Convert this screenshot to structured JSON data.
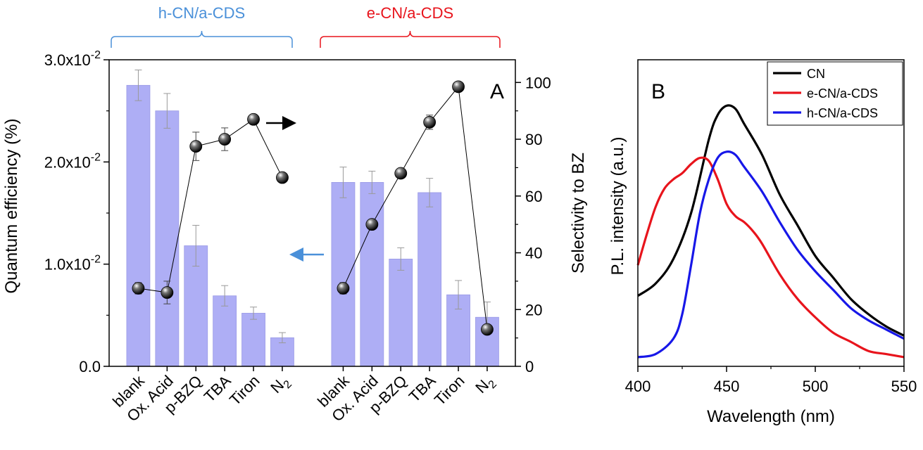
{
  "chart_data": [
    {
      "panel": "A",
      "type": "bar",
      "panel_label": "A",
      "group_labels": [
        {
          "label": "h-CN/a-CDS",
          "color": "#4a90d9"
        },
        {
          "label": "e-CN/a-CDS",
          "color": "#e8141c"
        }
      ],
      "categories": [
        "blank",
        "Ox. Acid",
        "p-BZQ",
        "TBA",
        "Tiron",
        "N2"
      ],
      "category_labels": [
        "blank",
        "Ox. Acid",
        "p-BZQ",
        "TBA",
        "Tiron",
        "N"
      ],
      "category_subscript_last": "2",
      "ylabel": "Quantum efficiency (%)",
      "ylim": [
        0,
        0.03
      ],
      "yticks": [
        {
          "value": 0.0,
          "label": "0.0"
        },
        {
          "value": 0.01,
          "label": "1.0x10",
          "exp": "-2"
        },
        {
          "value": 0.02,
          "label": "2.0x10",
          "exp": "-2"
        },
        {
          "value": 0.03,
          "label": "3.0x10",
          "exp": "-2"
        }
      ],
      "y2label": "Selectivity to BZ",
      "y2lim": [
        0,
        108
      ],
      "y2ticks": [
        0,
        20,
        40,
        60,
        80,
        100
      ],
      "bar_color": "#aeaef5",
      "series": [
        {
          "group": "h-CN/a-CDS",
          "quantum_efficiency": [
            0.0275,
            0.025,
            0.0118,
            0.0069,
            0.0052,
            0.0028
          ],
          "qe_error": [
            0.0015,
            0.0017,
            0.002,
            0.001,
            0.0006,
            0.0005
          ],
          "selectivity": [
            27.5,
            26,
            77.5,
            80,
            87,
            66.5
          ],
          "selectivity_error": [
            2,
            4,
            5,
            4,
            0.5,
            0.5
          ]
        },
        {
          "group": "e-CN/a-CDS",
          "quantum_efficiency": [
            0.018,
            0.018,
            0.0105,
            0.017,
            0.007,
            0.0048
          ],
          "qe_error": [
            0.0015,
            0.0011,
            0.0011,
            0.0014,
            0.0014,
            0.0015
          ],
          "selectivity": [
            27.5,
            50,
            68,
            86,
            98.5,
            13
          ],
          "selectivity_error": [
            2,
            1,
            1.5,
            2.5,
            1,
            1.5
          ]
        }
      ],
      "arrows": [
        {
          "points_to": "right axis",
          "color": "#000000"
        },
        {
          "points_to": "left axis",
          "color": "#4a90d9"
        }
      ]
    },
    {
      "panel": "B",
      "type": "line",
      "panel_label": "B",
      "xlabel": "Wavelength (nm)",
      "ylabel": "P.L. intensity (a.u.)",
      "xlim": [
        400,
        550
      ],
      "xticks": [
        400,
        450,
        500,
        550
      ],
      "ylim": [
        0,
        1
      ],
      "yticks_shown": false,
      "legend_position": "top-right",
      "series": [
        {
          "name": "CN",
          "color": "#000000",
          "x": [
            400,
            410,
            420,
            430,
            440,
            445,
            450,
            455,
            460,
            470,
            480,
            490,
            500,
            510,
            520,
            530,
            540,
            550
          ],
          "y": [
            0.23,
            0.27,
            0.35,
            0.5,
            0.74,
            0.82,
            0.85,
            0.84,
            0.79,
            0.69,
            0.56,
            0.46,
            0.36,
            0.29,
            0.22,
            0.17,
            0.13,
            0.1
          ]
        },
        {
          "name": "e-CN/a-CDS",
          "color": "#e8141c",
          "x": [
            400,
            405,
            410,
            415,
            420,
            425,
            430,
            435,
            440,
            445,
            450,
            455,
            460,
            465,
            470,
            480,
            490,
            500,
            510,
            520,
            530,
            540,
            550
          ],
          "y": [
            0.33,
            0.43,
            0.52,
            0.58,
            0.61,
            0.63,
            0.66,
            0.68,
            0.67,
            0.61,
            0.53,
            0.49,
            0.47,
            0.44,
            0.4,
            0.3,
            0.22,
            0.16,
            0.11,
            0.08,
            0.05,
            0.04,
            0.03
          ]
        },
        {
          "name": "h-CN/a-CDS",
          "color": "#1717e8",
          "x": [
            400,
            410,
            420,
            425,
            430,
            435,
            440,
            445,
            450,
            455,
            460,
            470,
            480,
            490,
            500,
            510,
            520,
            530,
            540,
            550
          ],
          "y": [
            0.03,
            0.04,
            0.09,
            0.17,
            0.33,
            0.5,
            0.61,
            0.68,
            0.7,
            0.69,
            0.65,
            0.57,
            0.47,
            0.38,
            0.31,
            0.25,
            0.19,
            0.15,
            0.12,
            0.09
          ]
        }
      ]
    }
  ]
}
